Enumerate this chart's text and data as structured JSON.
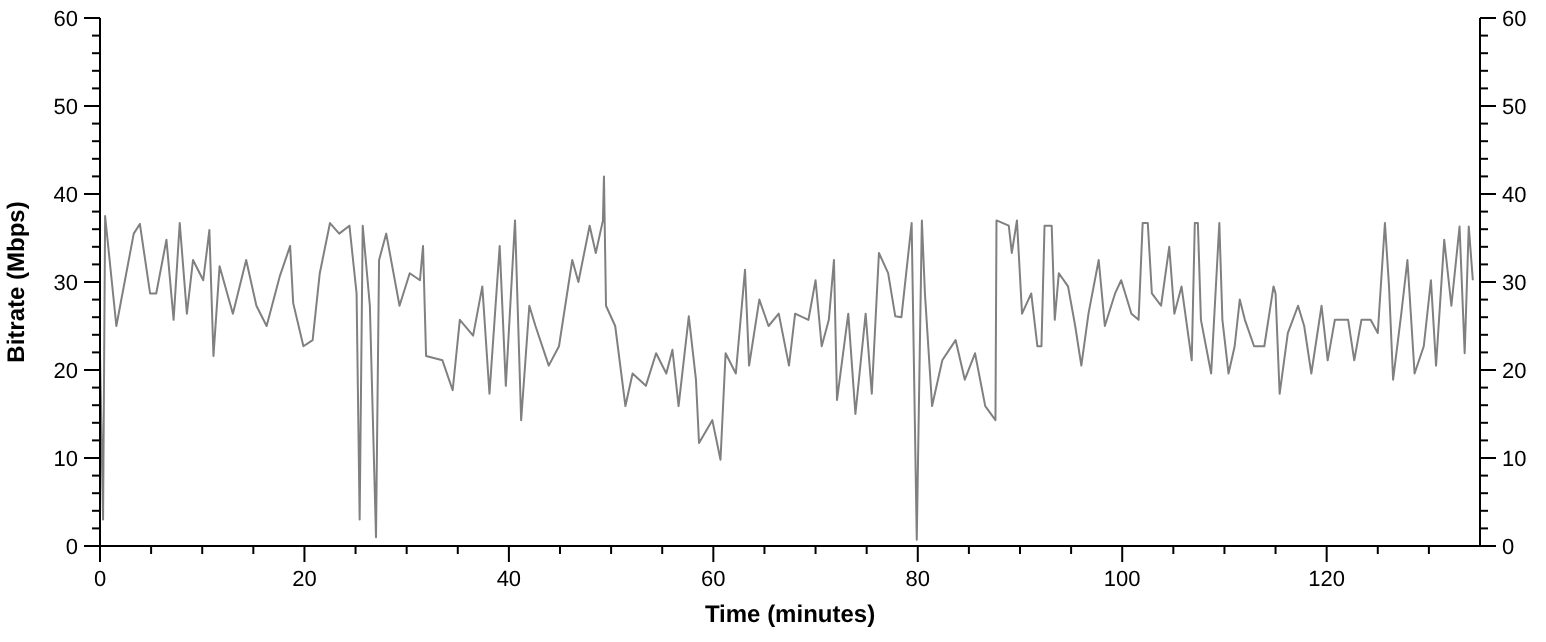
{
  "chart_data": {
    "type": "line",
    "xlabel": "Time (minutes)",
    "ylabel": "Bitrate (Mbps)",
    "grid": false,
    "marker": "none",
    "line_style": "solid",
    "xlim": [
      0,
      135
    ],
    "ylim": [
      0,
      60
    ],
    "y2lim": [
      0,
      60
    ],
    "xticks": [
      0,
      {
        "value": 5,
        "label": null
      },
      {
        "value": 10,
        "label": null
      },
      {
        "value": 15,
        "label": null
      },
      20,
      {
        "value": 25,
        "label": null
      },
      {
        "value": 30,
        "label": null
      },
      {
        "value": 35,
        "label": null
      },
      40,
      {
        "value": 45,
        "label": null
      },
      {
        "value": 50,
        "label": null
      },
      {
        "value": 55,
        "label": null
      },
      60,
      {
        "value": 65,
        "label": null
      },
      {
        "value": 70,
        "label": null
      },
      {
        "value": 75,
        "label": null
      },
      80,
      {
        "value": 85,
        "label": null
      },
      {
        "value": 90,
        "label": null
      },
      {
        "value": 95,
        "label": null
      },
      100,
      {
        "value": 105,
        "label": null
      },
      {
        "value": 110,
        "label": null
      },
      {
        "value": 115,
        "label": null
      },
      120,
      {
        "value": 125,
        "label": null
      },
      {
        "value": 130,
        "label": null
      }
    ],
    "yticks": [
      0,
      {
        "value": 2,
        "label": null
      },
      {
        "value": 4,
        "label": null
      },
      {
        "value": 6,
        "label": null
      },
      {
        "value": 8,
        "label": null
      },
      10,
      {
        "value": 12,
        "label": null
      },
      {
        "value": 14,
        "label": null
      },
      {
        "value": 16,
        "label": null
      },
      {
        "value": 18,
        "label": null
      },
      20,
      {
        "value": 22,
        "label": null
      },
      {
        "value": 24,
        "label": null
      },
      {
        "value": 26,
        "label": null
      },
      {
        "value": 28,
        "label": null
      },
      30,
      {
        "value": 32,
        "label": null
      },
      {
        "value": 34,
        "label": null
      },
      {
        "value": 36,
        "label": null
      },
      {
        "value": 38,
        "label": null
      },
      40,
      {
        "value": 42,
        "label": null
      },
      {
        "value": 44,
        "label": null
      },
      {
        "value": 46,
        "label": null
      },
      {
        "value": 48,
        "label": null
      },
      50,
      {
        "value": 52,
        "label": null
      },
      {
        "value": 54,
        "label": null
      },
      {
        "value": 56,
        "label": null
      },
      {
        "value": 58,
        "label": null
      },
      60
    ],
    "y2ticks": [
      0,
      {
        "value": 2,
        "label": null
      },
      {
        "value": 4,
        "label": null
      },
      {
        "value": 6,
        "label": null
      },
      {
        "value": 8,
        "label": null
      },
      10,
      {
        "value": 12,
        "label": null
      },
      {
        "value": 14,
        "label": null
      },
      {
        "value": 16,
        "label": null
      },
      {
        "value": 18,
        "label": null
      },
      20,
      {
        "value": 22,
        "label": null
      },
      {
        "value": 24,
        "label": null
      },
      {
        "value": 26,
        "label": null
      },
      {
        "value": 28,
        "label": null
      },
      30,
      {
        "value": 32,
        "label": null
      },
      {
        "value": 34,
        "label": null
      },
      {
        "value": 36,
        "label": null
      },
      {
        "value": 38,
        "label": null
      },
      40,
      {
        "value": 42,
        "label": null
      },
      {
        "value": 44,
        "label": null
      },
      {
        "value": 46,
        "label": null
      },
      {
        "value": 48,
        "label": null
      },
      50,
      {
        "value": 52,
        "label": null
      },
      {
        "value": 54,
        "label": null
      },
      {
        "value": 56,
        "label": null
      },
      {
        "value": 58,
        "label": null
      },
      60
    ],
    "series": [
      {
        "color": "#808080",
        "x": [
          0,
          0.3,
          0.5,
          1.6,
          3.3,
          3.9,
          4.9,
          5.5,
          6.5,
          7.2,
          7.8,
          8.5,
          9.1,
          10.1,
          10.7,
          11.1,
          11.7,
          13.0,
          14.3,
          15.3,
          16.3,
          17.6,
          18.6,
          18.9,
          19.9,
          20.8,
          21.5,
          22.5,
          23.4,
          24.4,
          25.1,
          25.4,
          25.7,
          26.4,
          27.0,
          27.3,
          28.0,
          29.3,
          30.3,
          31.3,
          31.6,
          31.9,
          33.5,
          34.5,
          35.2,
          36.5,
          37.4,
          38.1,
          39.1,
          39.7,
          40.6,
          41.2,
          42.0,
          42.6,
          43.9,
          44.9,
          46.2,
          46.8,
          47.9,
          48.5,
          49.2,
          49.3,
          49.5,
          50.4,
          51.4,
          52.1,
          53.4,
          54.4,
          55.4,
          56.0,
          56.6,
          57.6,
          58.3,
          58.6,
          59.9,
          60.7,
          61.2,
          62.2,
          63.1,
          63.5,
          64.5,
          65.4,
          66.4,
          67.4,
          68.0,
          69.3,
          70.0,
          70.6,
          71.3,
          71.8,
          72.1,
          73.2,
          73.9,
          74.9,
          75.5,
          76.2,
          77.1,
          77.8,
          78.4,
          79.4,
          79.9,
          80.4,
          80.7,
          81.4,
          82.4,
          83.7,
          84.6,
          85.6,
          86.6,
          87.6,
          87.7,
          88.9,
          89.2,
          89.7,
          90.2,
          91.1,
          91.7,
          92.1,
          92.4,
          93.1,
          93.4,
          93.8,
          94.7,
          95.4,
          96.0,
          96.7,
          97.7,
          98.3,
          99.3,
          99.9,
          100.9,
          101.6,
          102.0,
          102.5,
          102.9,
          103.8,
          104.6,
          105.1,
          105.8,
          106.8,
          107.1,
          107.4,
          107.7,
          108.7,
          109.5,
          109.8,
          110.4,
          111.0,
          111.5,
          112.0,
          112.9,
          113.9,
          114.8,
          115.0,
          115.4,
          116.2,
          117.2,
          117.8,
          118.5,
          119.5,
          120.1,
          120.8,
          122.1,
          122.7,
          123.4,
          124.3,
          125.0,
          125.7,
          126.1,
          126.5,
          127.3,
          127.9,
          128.6,
          129.5,
          130.2,
          130.7,
          131.5,
          132.2,
          133.0,
          133.5,
          133.9,
          134.3
        ],
        "values": [
          22,
          3,
          37.5,
          25,
          35.5,
          36.6,
          28.7,
          28.7,
          34.8,
          25.7,
          36.7,
          26.4,
          32.5,
          30.2,
          35.9,
          21.6,
          31.8,
          26.4,
          32.5,
          27.3,
          25,
          30.7,
          34.1,
          27.6,
          22.7,
          23.4,
          31,
          36.7,
          35.5,
          36.4,
          28.7,
          3,
          36.4,
          27.3,
          1,
          32.5,
          35.5,
          27.3,
          31,
          30.2,
          34.1,
          21.6,
          21.1,
          17.7,
          25.7,
          23.9,
          29.5,
          17.3,
          34.1,
          18.2,
          37,
          14.3,
          27.3,
          25,
          20.5,
          22.7,
          32.5,
          30,
          36.4,
          33.3,
          37,
          42,
          27.3,
          25,
          15.9,
          19.6,
          18.2,
          21.9,
          19.6,
          22.3,
          15.9,
          26.1,
          18.9,
          11.7,
          14.3,
          9.8,
          21.9,
          19.6,
          31.4,
          20.5,
          28,
          25,
          26.4,
          20.5,
          26.4,
          25.7,
          30.2,
          22.7,
          25.7,
          32.5,
          16.6,
          26.4,
          15,
          26.4,
          17.3,
          33.3,
          31,
          26.1,
          26,
          36.7,
          0.7,
          37,
          28.7,
          15.9,
          21.1,
          23.4,
          18.9,
          21.9,
          15.9,
          14.3,
          37,
          36.4,
          33.3,
          37,
          26.4,
          28.7,
          22.7,
          22.7,
          36.4,
          36.4,
          25.7,
          31,
          29.5,
          25,
          20.5,
          26.4,
          32.5,
          25,
          28.7,
          30.2,
          26.4,
          25.7,
          36.7,
          36.7,
          28.7,
          27.3,
          34,
          26.4,
          29.5,
          21.1,
          36.7,
          36.7,
          25.7,
          19.6,
          36.7,
          25.7,
          19.6,
          22.7,
          28,
          25.7,
          22.7,
          22.7,
          29.5,
          28.7,
          17.3,
          24.2,
          27.3,
          25,
          19.6,
          27.3,
          21.1,
          25.7,
          25.7,
          21.1,
          25.7,
          25.7,
          24.2,
          36.7,
          29.5,
          18.9,
          26.4,
          32.5,
          19.6,
          22.7,
          30.2,
          20.5,
          34.8,
          27.3,
          36.3,
          21.9,
          36.3,
          30.2
        ]
      }
    ]
  }
}
